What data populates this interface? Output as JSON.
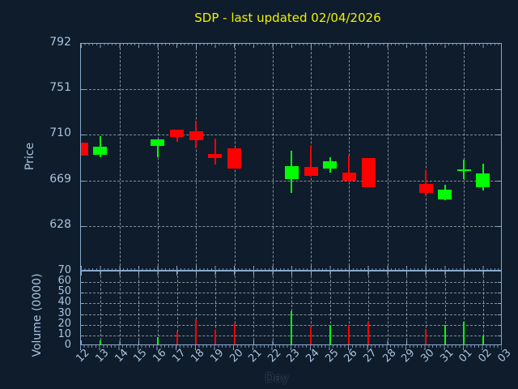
{
  "colors": {
    "background": "#0e1c2c",
    "axis_border": "#8aa9c9",
    "grid": "#b0b4b8",
    "tick_label": "#a9c3dd",
    "title": "#f0f000",
    "up": "#00ff00",
    "down": "#ff0000"
  },
  "chart_data": {
    "type": "candlestick",
    "title": "SDP - last updated 02/04/2026",
    "xlabel": "Day",
    "legend": "none",
    "grid": "dashed",
    "x_categories": [
      "12",
      "13",
      "14",
      "15",
      "16",
      "17",
      "18",
      "19",
      "20",
      "21",
      "22",
      "23",
      "24",
      "25",
      "26",
      "27",
      "28",
      "29",
      "30",
      "31",
      "01",
      "02",
      "03"
    ],
    "price_panel": {
      "ylabel": "Price",
      "yticks": [
        792,
        751,
        710,
        669,
        628
      ],
      "ylim": [
        587,
        792
      ],
      "x_gridline_every": 2,
      "candles": [
        {
          "day": "12",
          "open": 703,
          "high": 703,
          "low": 691,
          "close": 691,
          "direction": "down"
        },
        {
          "day": "13",
          "open": 692,
          "high": 709,
          "low": 690,
          "close": 699,
          "direction": "up"
        },
        {
          "day": "16",
          "open": 700,
          "high": 706,
          "low": 690,
          "close": 706,
          "direction": "up"
        },
        {
          "day": "17",
          "open": 715,
          "high": 715,
          "low": 704,
          "close": 708,
          "direction": "down"
        },
        {
          "day": "18",
          "open": 713,
          "high": 723,
          "low": 698,
          "close": 705,
          "direction": "down"
        },
        {
          "day": "19",
          "open": 693,
          "high": 707,
          "low": 683,
          "close": 689,
          "direction": "down"
        },
        {
          "day": "20",
          "open": 698,
          "high": 698,
          "low": 680,
          "close": 680,
          "direction": "down"
        },
        {
          "day": "23",
          "open": 670,
          "high": 696,
          "low": 658,
          "close": 682,
          "direction": "up"
        },
        {
          "day": "24",
          "open": 681,
          "high": 700,
          "low": 672,
          "close": 673,
          "direction": "down"
        },
        {
          "day": "25",
          "open": 680,
          "high": 690,
          "low": 676,
          "close": 686,
          "direction": "up"
        },
        {
          "day": "26",
          "open": 676,
          "high": 691,
          "low": 668,
          "close": 669,
          "direction": "down"
        },
        {
          "day": "27",
          "open": 689,
          "high": 689,
          "low": 663,
          "close": 663,
          "direction": "down"
        },
        {
          "day": "30",
          "open": 666,
          "high": 678,
          "low": 655,
          "close": 658,
          "direction": "down"
        },
        {
          "day": "31",
          "open": 652,
          "high": 665,
          "low": 651,
          "close": 661,
          "direction": "up"
        },
        {
          "day": "01",
          "open": 678,
          "high": 688,
          "low": 670,
          "close": 679,
          "direction": "up"
        },
        {
          "day": "02",
          "open": 663,
          "high": 684,
          "low": 660,
          "close": 675,
          "direction": "up"
        }
      ]
    },
    "volume_panel": {
      "ylabel": "Volume (0000)",
      "yticks": [
        70,
        60,
        50,
        40,
        30,
        20,
        10,
        0
      ],
      "ylim": [
        0,
        70
      ],
      "x_gridline_every": 1,
      "bars": [
        {
          "day": "13",
          "value": 5,
          "direction": "up"
        },
        {
          "day": "16",
          "value": 8,
          "direction": "up"
        },
        {
          "day": "17",
          "value": 14,
          "direction": "down"
        },
        {
          "day": "18",
          "value": 25,
          "direction": "down"
        },
        {
          "day": "19",
          "value": 15,
          "direction": "down"
        },
        {
          "day": "20",
          "value": 21,
          "direction": "down"
        },
        {
          "day": "23",
          "value": 33,
          "direction": "up"
        },
        {
          "day": "24",
          "value": 18,
          "direction": "down"
        },
        {
          "day": "25",
          "value": 19,
          "direction": "up"
        },
        {
          "day": "26",
          "value": 20,
          "direction": "down"
        },
        {
          "day": "27",
          "value": 23,
          "direction": "down"
        },
        {
          "day": "30",
          "value": 16,
          "direction": "down"
        },
        {
          "day": "31",
          "value": 20,
          "direction": "up"
        },
        {
          "day": "01",
          "value": 23,
          "direction": "up"
        },
        {
          "day": "02",
          "value": 10,
          "direction": "up"
        }
      ]
    }
  }
}
